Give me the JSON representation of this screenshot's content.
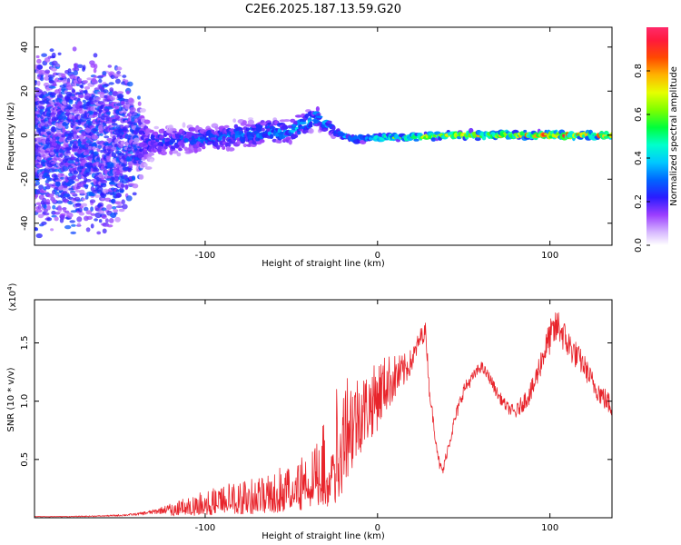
{
  "title": "C2E6.2025.187.13.59.G20",
  "chart_data": [
    {
      "type": "heatmap",
      "name": "spectrogram",
      "xlabel": "Height of straight line (km)",
      "ylabel": "Frequency (Hz)",
      "xlim": [
        -199,
        136
      ],
      "ylim": [
        -50,
        49
      ],
      "xticks": [
        -100,
        0,
        100
      ],
      "yticks": [
        -40,
        -20,
        0,
        20,
        40
      ],
      "colorbar": {
        "label": "Normalized spectral amplitude",
        "range": [
          0.0,
          1.0
        ],
        "ticks": [
          "0.0",
          "0.2",
          "0.4",
          "0.6",
          "0.8"
        ]
      },
      "ridge": {
        "x": [
          -190,
          -150,
          -130,
          -110,
          -90,
          -70,
          -50,
          -35,
          -25,
          -15,
          0,
          20,
          40,
          60,
          80,
          100,
          120,
          136
        ],
        "freq": [
          -3,
          -4,
          -3,
          -2,
          -1,
          1,
          2,
          8,
          2,
          -2,
          -1,
          -1,
          0,
          0,
          0,
          0,
          0,
          0
        ],
        "spread": [
          45,
          40,
          8,
          7,
          7,
          7,
          6,
          6,
          3,
          2,
          2,
          2,
          2,
          2,
          2,
          2,
          2,
          2
        ],
        "amplitude": [
          0.18,
          0.2,
          0.25,
          0.32,
          0.32,
          0.35,
          0.4,
          0.42,
          0.35,
          0.4,
          0.55,
          0.65,
          0.7,
          0.75,
          0.85,
          0.9,
          0.85,
          0.8
        ]
      }
    },
    {
      "type": "line",
      "name": "snr",
      "xlabel": "Height of straight line (km)",
      "ylabel": "SNR (10 * v/v)",
      "y_multiplier": "(x10",
      "y_multiplier_exp": "4",
      "y_multiplier_close": ")",
      "xlim": [
        -199,
        136
      ],
      "ylim": [
        0,
        1.87
      ],
      "xticks": [
        -100,
        0,
        100
      ],
      "yticks": [
        0.5,
        1.0,
        1.5
      ],
      "ytick_labels": [
        "0.5",
        "1.0",
        "1.5"
      ],
      "series": [
        {
          "color": "#e8242b",
          "x": [
            -199,
            -180,
            -160,
            -150,
            -140,
            -130,
            -120,
            -110,
            -100,
            -90,
            -80,
            -70,
            -60,
            -50,
            -40,
            -30,
            -25,
            -20,
            -15,
            -10,
            -5,
            0,
            5,
            10,
            15,
            20,
            25,
            28,
            30,
            33,
            36,
            38,
            40,
            45,
            50,
            55,
            60,
            65,
            70,
            75,
            80,
            85,
            90,
            95,
            100,
            105,
            110,
            115,
            120,
            125,
            130,
            136
          ],
          "y": [
            0.01,
            0.01,
            0.015,
            0.02,
            0.03,
            0.05,
            0.08,
            0.12,
            0.15,
            0.18,
            0.2,
            0.22,
            0.28,
            0.3,
            0.4,
            0.5,
            0.75,
            0.85,
            0.8,
            0.9,
            0.95,
            1.05,
            1.15,
            1.2,
            1.25,
            1.35,
            1.55,
            1.6,
            1.1,
            0.75,
            0.45,
            0.4,
            0.55,
            0.85,
            1.1,
            1.2,
            1.3,
            1.2,
            1.05,
            0.95,
            0.9,
            1.0,
            1.1,
            1.35,
            1.55,
            1.65,
            1.5,
            1.4,
            1.3,
            1.15,
            1.05,
            0.95
          ],
          "noise": [
            0.003,
            0.003,
            0.005,
            0.008,
            0.01,
            0.02,
            0.04,
            0.06,
            0.08,
            0.1,
            0.12,
            0.12,
            0.15,
            0.2,
            0.25,
            0.35,
            0.45,
            0.5,
            0.45,
            0.35,
            0.3,
            0.3,
            0.25,
            0.2,
            0.15,
            0.1,
            0.08,
            0.08,
            0.06,
            0.05,
            0.04,
            0.04,
            0.05,
            0.06,
            0.06,
            0.05,
            0.05,
            0.05,
            0.05,
            0.05,
            0.06,
            0.08,
            0.1,
            0.12,
            0.15,
            0.15,
            0.14,
            0.12,
            0.1,
            0.1,
            0.1,
            0.1
          ]
        }
      ]
    }
  ]
}
